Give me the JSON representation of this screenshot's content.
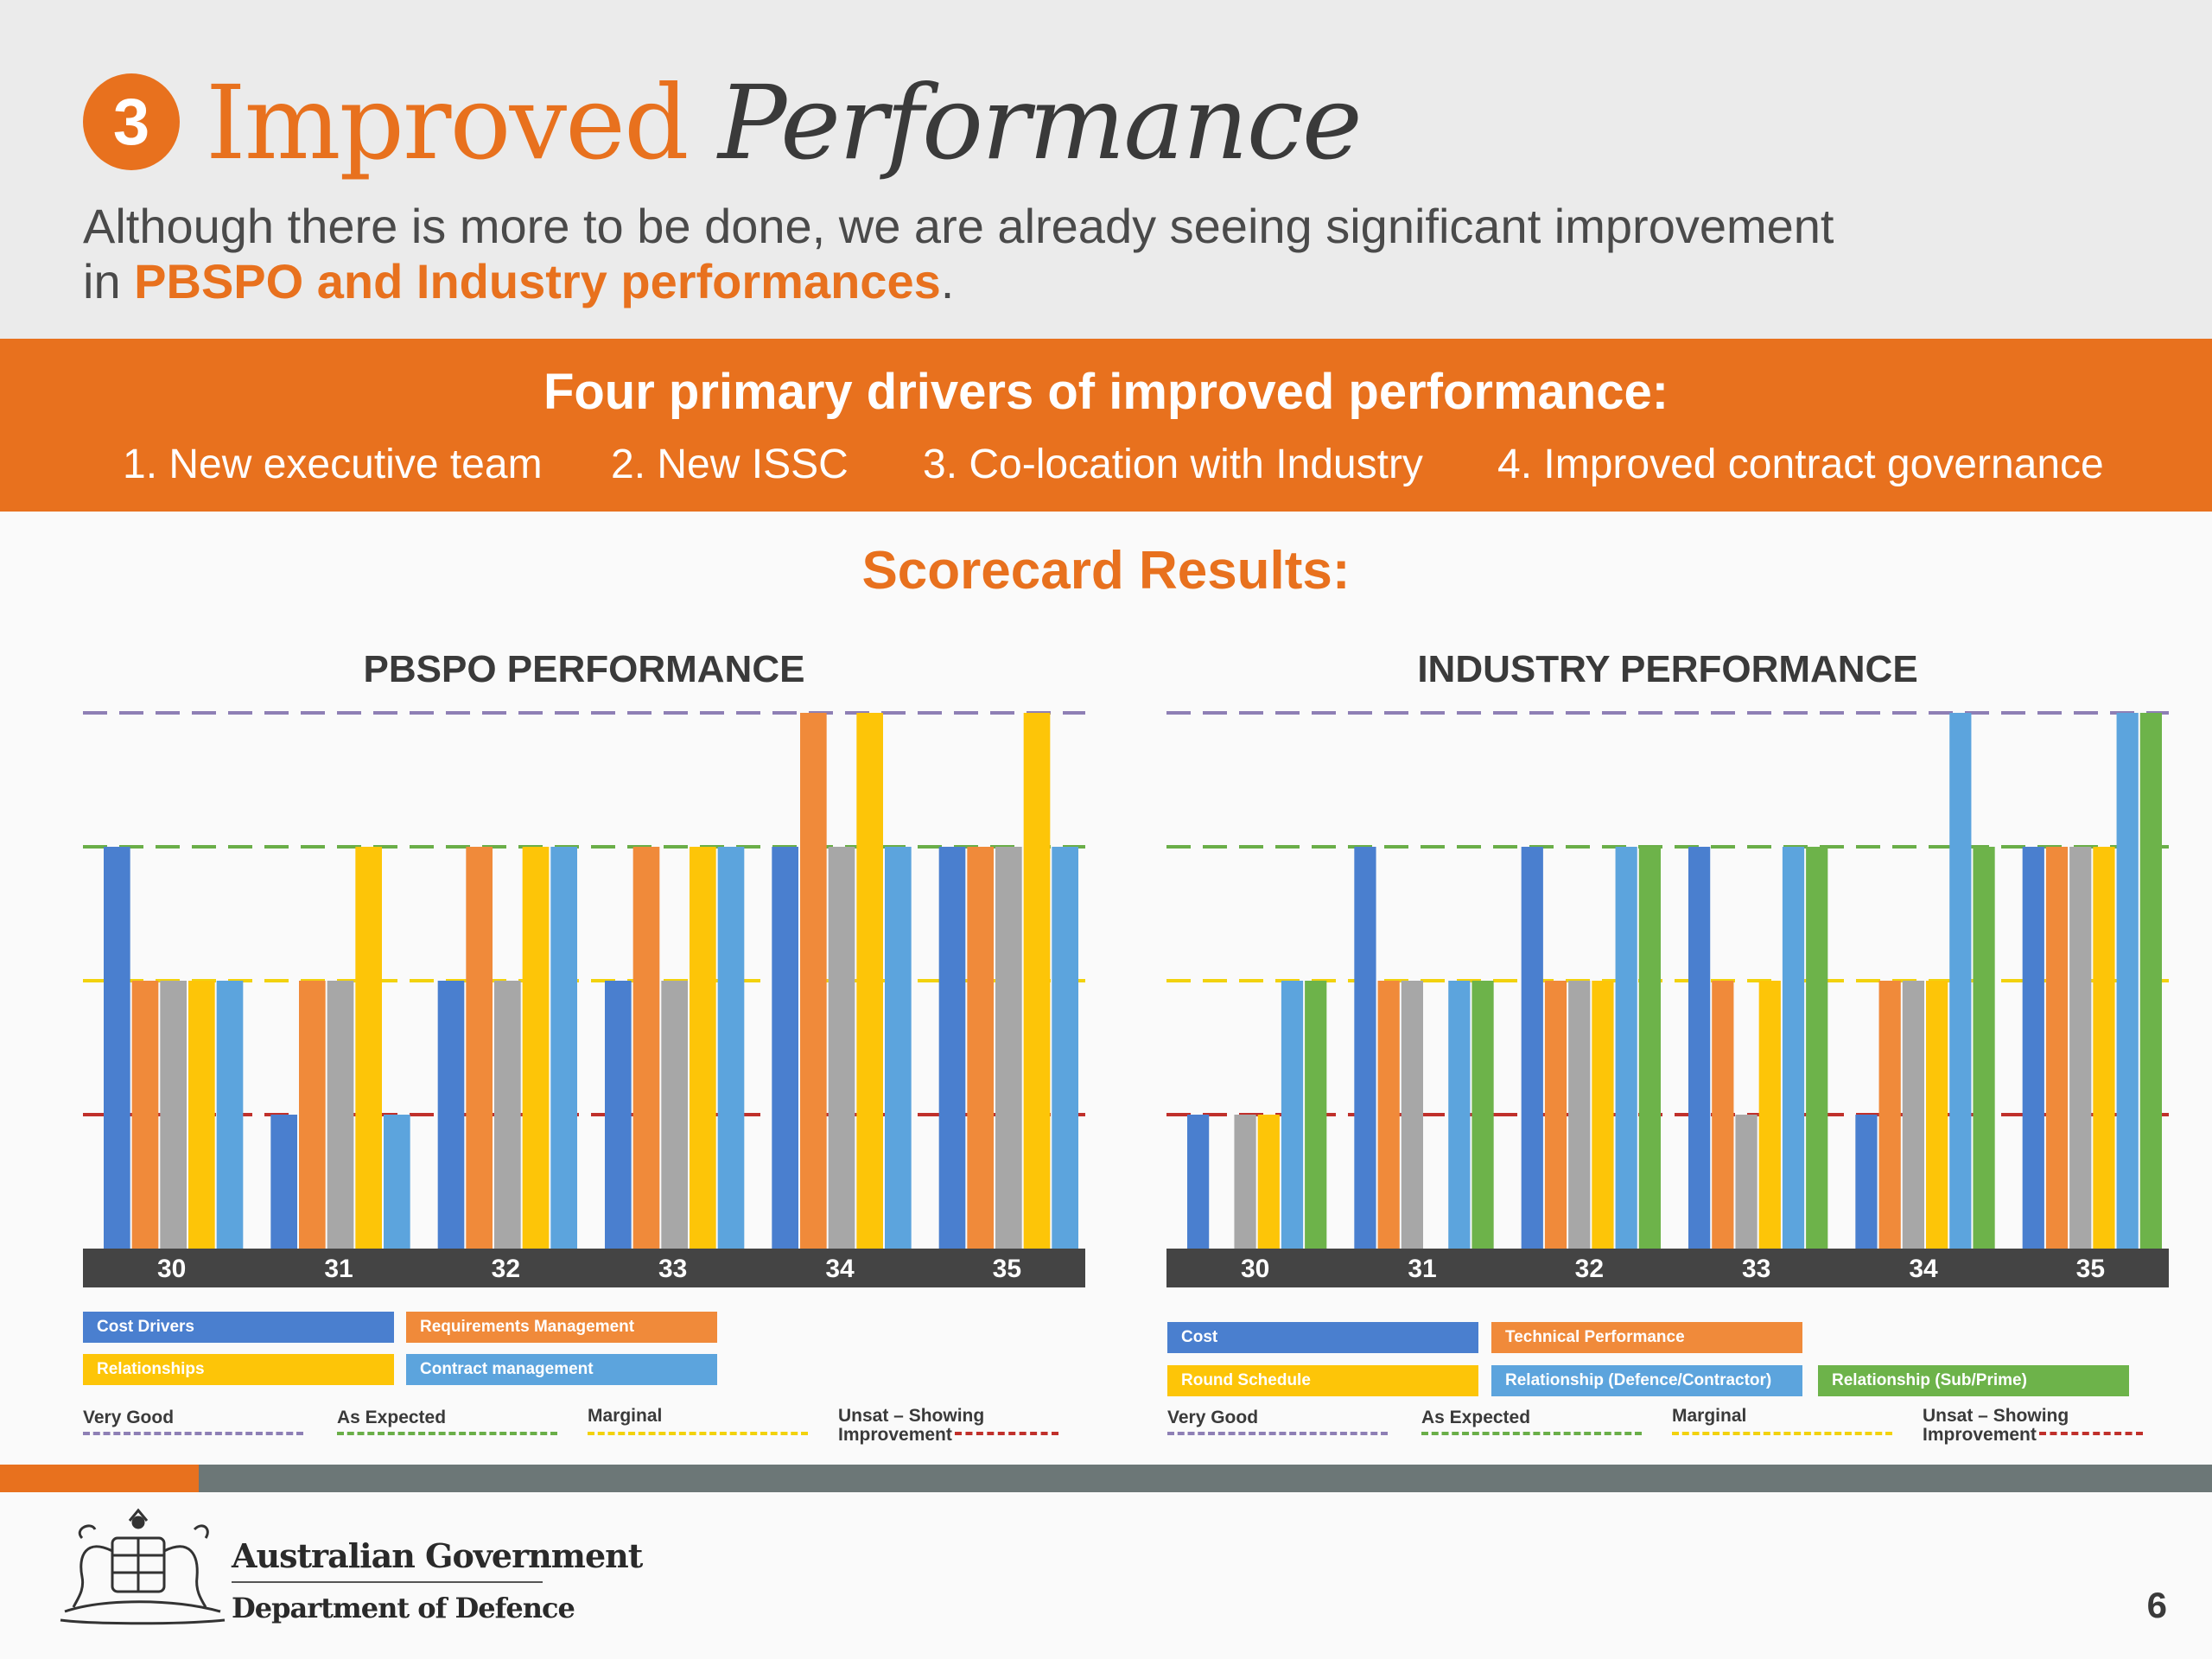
{
  "header": {
    "number": "3",
    "title_part1": "Improved",
    "title_part2": "Performance",
    "subtitle_text1": "Although there is more to be done, we are already seeing significant improvement",
    "subtitle_text2": "in",
    "subtitle_highlight": "PBSPO and Industry performances",
    "subtitle_text3": "."
  },
  "drivers": {
    "title": "Four primary drivers of improved performance:",
    "items": [
      "1. New executive team",
      "2. New ISSC",
      "3. Co-location with Industry",
      "4. Improved contract governance"
    ]
  },
  "scorecard_title": "Scorecard Results:",
  "reference_lines": [
    {
      "label": "Very Good",
      "level": 4,
      "color": "#8e7fb5"
    },
    {
      "label": "As Expected",
      "level": 3,
      "color": "#6aae48"
    },
    {
      "label": "Marginal",
      "level": 2,
      "color": "#f2d20d"
    },
    {
      "label": "Unsat – Showing Improvement",
      "level": 1,
      "color": "#c0302b"
    }
  ],
  "chart_data": [
    {
      "type": "bar",
      "title": "PBSPO PERFORMANCE",
      "categories": [
        "30",
        "31",
        "32",
        "33",
        "34",
        "35"
      ],
      "ylim": [
        0,
        4
      ],
      "series": [
        {
          "name": "Cost Drivers",
          "color": "#4a7fcf",
          "values": [
            3,
            1,
            2,
            2,
            3,
            3
          ]
        },
        {
          "name": "Requirements Management",
          "color": "#f08a3a",
          "values": [
            2,
            2,
            3,
            3,
            4,
            3
          ]
        },
        {
          "name": "",
          "color": "#a7a7a7",
          "values": [
            2,
            2,
            2,
            2,
            3,
            3
          ]
        },
        {
          "name": "Relationships",
          "color": "#fdc508",
          "values": [
            2,
            3,
            3,
            3,
            4,
            4
          ]
        },
        {
          "name": "Contract management",
          "color": "#5ca4dd",
          "values": [
            2,
            1,
            3,
            3,
            3,
            3
          ]
        }
      ]
    },
    {
      "type": "bar",
      "title": "INDUSTRY PERFORMANCE",
      "categories": [
        "30",
        "31",
        "32",
        "33",
        "34",
        "35"
      ],
      "ylim": [
        0,
        4
      ],
      "series": [
        {
          "name": "Cost",
          "color": "#4a7fcf",
          "values": [
            1,
            3,
            3,
            3,
            1,
            3
          ]
        },
        {
          "name": "Technical Performance",
          "color": "#f08a3a",
          "values": [
            0,
            2,
            2,
            2,
            2,
            3
          ]
        },
        {
          "name": "",
          "color": "#a7a7a7",
          "values": [
            1,
            2,
            2,
            1,
            2,
            3
          ]
        },
        {
          "name": "Round Schedule",
          "color": "#fdc508",
          "values": [
            1,
            0,
            2,
            2,
            2,
            3
          ]
        },
        {
          "name": "Relationship (Defence/Contractor)",
          "color": "#5ca4dd",
          "values": [
            2,
            2,
            3,
            3,
            4,
            4
          ]
        },
        {
          "name": "Relationship (Sub/Prime)",
          "color": "#6db34a",
          "values": [
            2,
            2,
            3,
            3,
            3,
            4
          ]
        }
      ]
    }
  ],
  "footer": {
    "gov1": "Australian Government",
    "gov2": "Department of Defence",
    "page": "6"
  }
}
